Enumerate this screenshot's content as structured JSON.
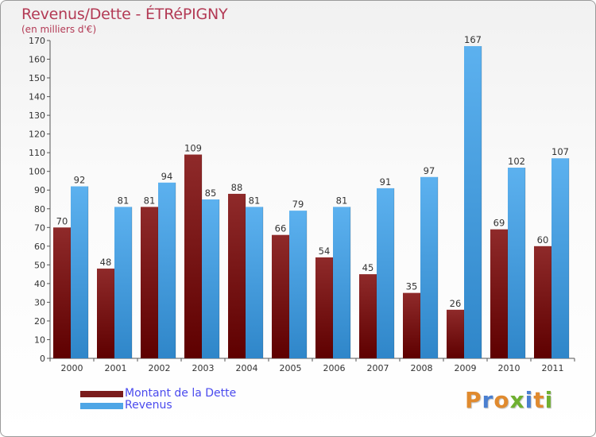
{
  "title": "Revenus/Dette - ÉTRéPIGNY",
  "subtitle": "(en milliers d'€)",
  "brand": "Proxiti",
  "colors": {
    "dette": "#7a1c1c",
    "dette_light": "#8f2a2a",
    "dette_dark": "#5e0000",
    "revenus": "#4ea6e6",
    "revenus_light": "#5cb1ef",
    "revenus_dark": "#2f86c9",
    "title": "#b33a55",
    "legend_text": "#4a4aee",
    "brand_letters": [
      "#e08a2e",
      "#4a7fd0",
      "#e08a2e",
      "#6fb030",
      "#4a7fd0",
      "#e08a2e",
      "#6fb030"
    ]
  },
  "chart_data": {
    "type": "bar",
    "title": "Revenus/Dette - ÉTRéPIGNY",
    "subtitle": "(en milliers d'€)",
    "xlabel": "",
    "ylabel": "",
    "ylim": [
      0,
      170
    ],
    "yticks": [
      0,
      10,
      20,
      30,
      40,
      50,
      60,
      70,
      80,
      90,
      100,
      110,
      120,
      130,
      140,
      150,
      160,
      170
    ],
    "grid": false,
    "legend_position": "bottom-left",
    "categories": [
      "2000",
      "2001",
      "2002",
      "2003",
      "2004",
      "2005",
      "2006",
      "2007",
      "2008",
      "2009",
      "2010",
      "2011"
    ],
    "series": [
      {
        "name": "Montant de la Dette",
        "values": [
          70,
          48,
          81,
          109,
          88,
          66,
          54,
          45,
          35,
          26,
          69,
          60
        ]
      },
      {
        "name": "Revenus",
        "values": [
          92,
          81,
          94,
          85,
          81,
          79,
          81,
          91,
          97,
          167,
          102,
          107
        ]
      }
    ]
  }
}
